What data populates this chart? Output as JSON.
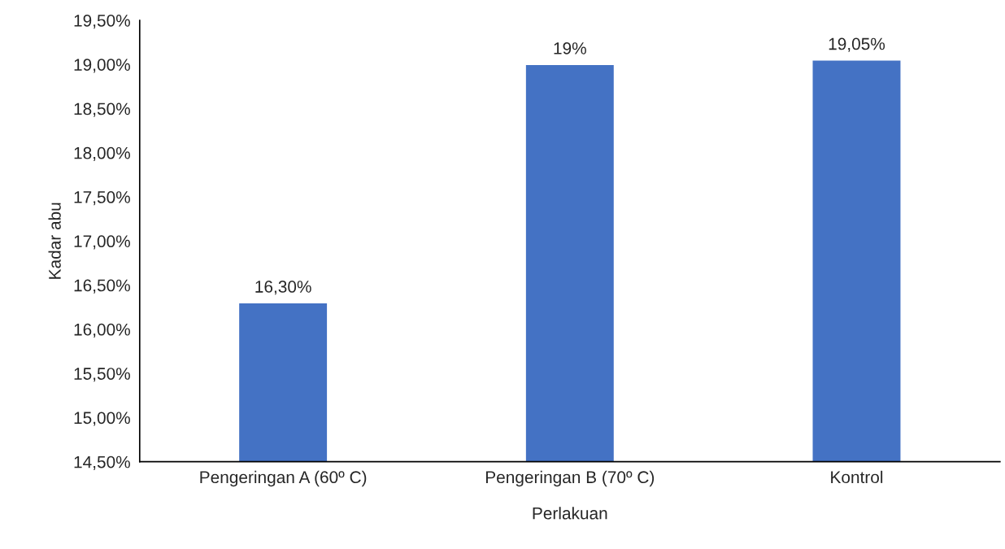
{
  "chart_data": {
    "type": "bar",
    "xlabel": "Perlakuan",
    "ylabel": "Kadar abu",
    "categories": [
      "Pengeringan A (60º C)",
      "Pengeringan B (70º C)",
      "Kontrol"
    ],
    "values": [
      16.3,
      19.0,
      19.05
    ],
    "value_labels": [
      "16,30%",
      "19%",
      "19,05%"
    ],
    "color": "#4472c4",
    "ylim": [
      14.5,
      19.5
    ],
    "yticks": [
      {
        "value": 14.5,
        "label": "14,50%"
      },
      {
        "value": 15.0,
        "label": "15,00%"
      },
      {
        "value": 15.5,
        "label": "15,50%"
      },
      {
        "value": 16.0,
        "label": "16,00%"
      },
      {
        "value": 16.5,
        "label": "16,50%"
      },
      {
        "value": 17.0,
        "label": "17,00%"
      },
      {
        "value": 17.5,
        "label": "17,50%"
      },
      {
        "value": 18.0,
        "label": "18,00%"
      },
      {
        "value": 18.5,
        "label": "18,50%"
      },
      {
        "value": 19.0,
        "label": "19,00%"
      },
      {
        "value": 19.5,
        "label": "19,50%"
      }
    ],
    "grid": false,
    "legend": false
  }
}
